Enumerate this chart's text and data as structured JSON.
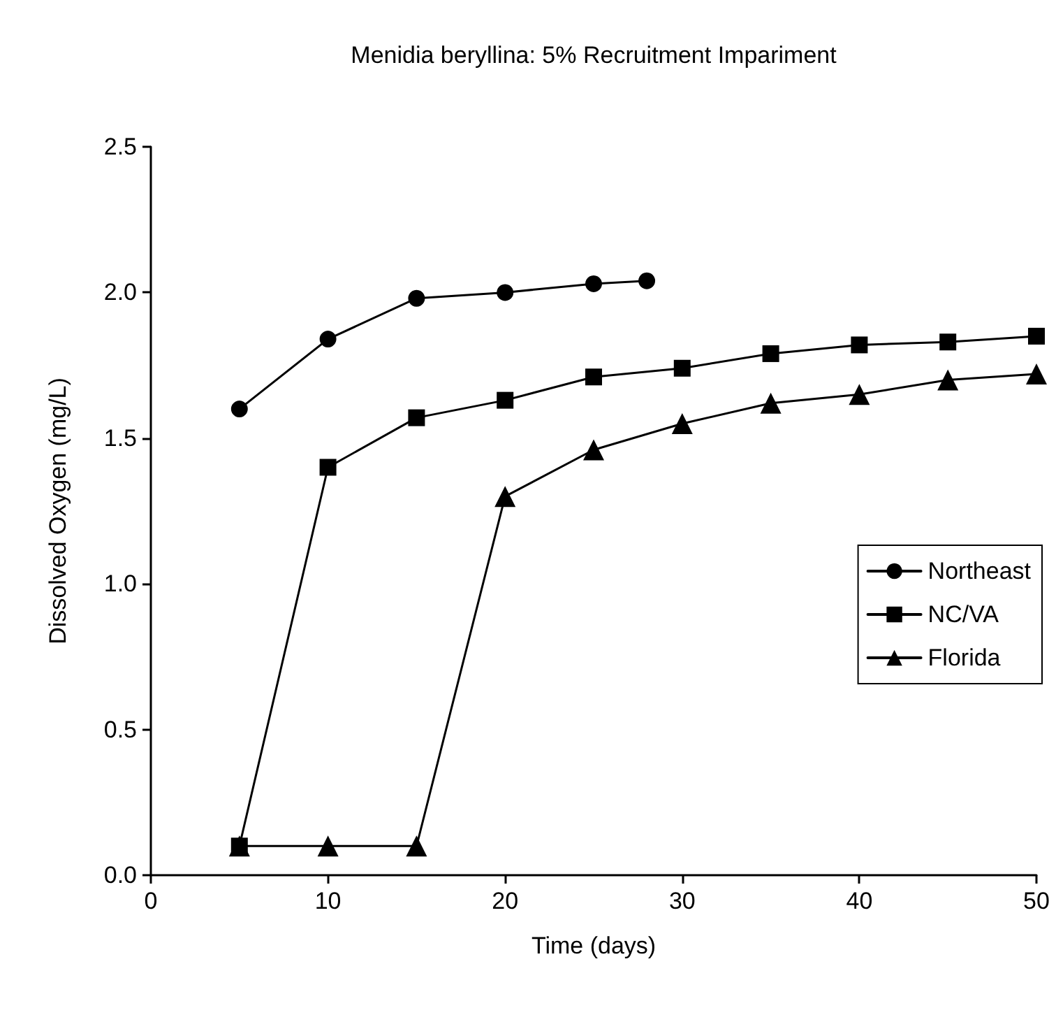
{
  "chart_data": {
    "type": "line",
    "title": "Menidia beryllina: 5% Recruitment Impariment",
    "xlabel": "Time (days)",
    "ylabel": "Dissolved Oxygen (mg/L)",
    "series": [
      {
        "name": "Northeast",
        "color": "#000000",
        "marker": "circle",
        "x": [
          5,
          10,
          15,
          20,
          25,
          28
        ],
        "values": [
          1.6,
          1.84,
          1.98,
          2.0,
          2.03,
          2.04
        ]
      },
      {
        "name": "NC/VA",
        "color": "#000000",
        "marker": "square",
        "x": [
          5,
          10,
          15,
          20,
          25,
          30,
          35,
          40,
          45,
          50
        ],
        "values": [
          0.1,
          1.4,
          1.57,
          1.63,
          1.71,
          1.74,
          1.79,
          1.82,
          1.83,
          1.85
        ]
      },
      {
        "name": "Florida",
        "color": "#000000",
        "marker": "triangle",
        "x": [
          5,
          10,
          15,
          20,
          25,
          30,
          35,
          40,
          45,
          50
        ],
        "values": [
          0.1,
          0.1,
          0.1,
          1.3,
          1.46,
          1.55,
          1.62,
          1.65,
          1.7,
          1.72
        ]
      }
    ],
    "xlim": [
      0,
      50
    ],
    "xticks": [
      0,
      10,
      20,
      30,
      40,
      50
    ],
    "ylim": [
      0,
      2.5
    ],
    "yticks": [
      {
        "value": 0,
        "label": "0.0"
      },
      {
        "value": 0.5,
        "label": "0.5"
      },
      {
        "value": 1,
        "label": "1.0"
      },
      {
        "value": 1.5,
        "label": "1.5"
      },
      {
        "value": 2,
        "label": "2.0"
      },
      {
        "value": 2.5,
        "label": "2.5"
      }
    ],
    "grid": false,
    "legend": "right",
    "line_style": "solid"
  }
}
